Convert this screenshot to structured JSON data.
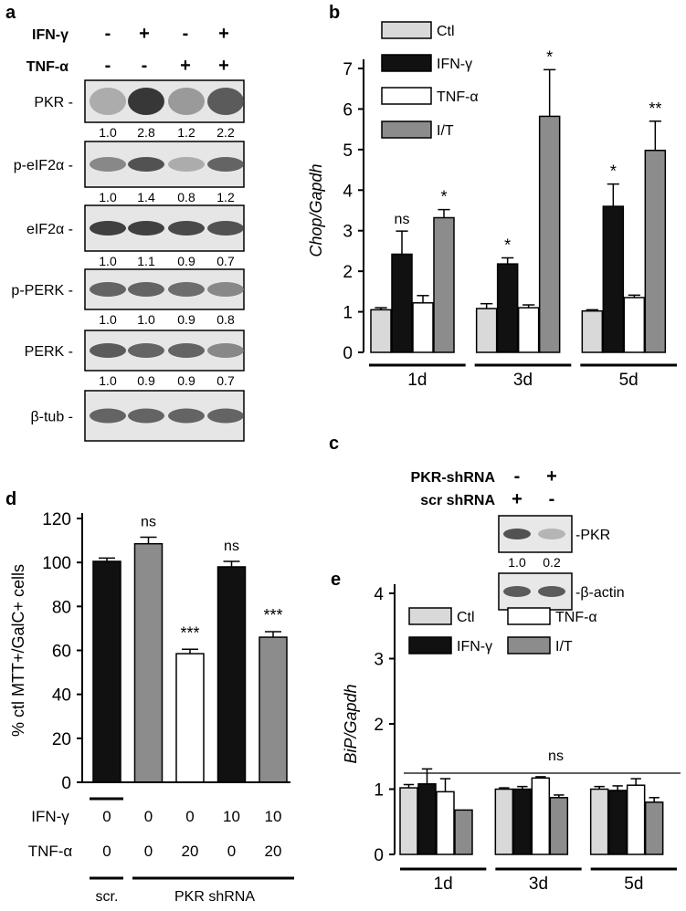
{
  "panel_letters": {
    "a": "a",
    "b": "b",
    "c": "c",
    "d": "d",
    "e": "e"
  },
  "blot_a": {
    "treatment_rows": [
      {
        "label": "IFN-γ",
        "signs": [
          "-",
          "+",
          "-",
          "+"
        ]
      },
      {
        "label": "TNF-α",
        "signs": [
          "-",
          "-",
          "+",
          "+"
        ]
      }
    ],
    "blots": [
      {
        "label": "PKR",
        "quant": [
          "1.0",
          "2.8",
          "1.2",
          "2.2"
        ],
        "intensity": [
          0.35,
          1.0,
          0.45,
          0.8
        ]
      },
      {
        "label": "p-eIF2α",
        "quant": [
          "1.0",
          "1.4",
          "0.8",
          "1.2"
        ],
        "intensity": [
          0.55,
          0.85,
          0.35,
          0.75
        ]
      },
      {
        "label": "eIF2α",
        "quant": [
          "1.0",
          "1.1",
          "0.9",
          "0.7"
        ],
        "intensity": [
          0.95,
          0.95,
          0.9,
          0.85
        ]
      },
      {
        "label": "p-PERK",
        "quant": [
          "1.0",
          "1.0",
          "0.9",
          "0.8"
        ],
        "intensity": [
          0.75,
          0.75,
          0.7,
          0.55
        ]
      },
      {
        "label": "PERK",
        "quant": [
          "1.0",
          "0.9",
          "0.9",
          "0.7"
        ],
        "intensity": [
          0.8,
          0.75,
          0.75,
          0.55
        ]
      },
      {
        "label": "β-tub",
        "quant": [],
        "intensity": [
          0.75,
          0.75,
          0.75,
          0.75
        ]
      }
    ]
  },
  "blot_c": {
    "treatment_rows": [
      {
        "label": "PKR-shRNA",
        "signs": [
          "-",
          "+"
        ]
      },
      {
        "label": "scr shRNA",
        "signs": [
          "+",
          "-"
        ]
      }
    ],
    "blots": [
      {
        "label": "-PKR",
        "quant": [
          "1.0",
          "0.2"
        ],
        "intensity": [
          0.85,
          0.3
        ]
      },
      {
        "label": "-β-actin",
        "quant": [],
        "intensity": [
          0.8,
          0.8
        ]
      }
    ]
  },
  "chart_data": [
    {
      "id": "b",
      "type": "bar",
      "ylabel": "Chop/Gapdh",
      "ylim": [
        0,
        7
      ],
      "yticks": [
        0,
        1,
        2,
        3,
        4,
        5,
        6,
        7
      ],
      "groups": [
        "1d",
        "3d",
        "5d"
      ],
      "series": [
        {
          "name": "Ctl",
          "color": "#d9d9d9",
          "values": [
            1.05,
            1.08,
            1.02
          ],
          "errors": [
            0.05,
            0.12,
            0.03
          ]
        },
        {
          "name": "IFN-γ",
          "color": "#111111",
          "values": [
            2.42,
            2.18,
            3.6
          ],
          "errors": [
            0.57,
            0.15,
            0.55
          ]
        },
        {
          "name": "TNF-α",
          "color": "#ffffff",
          "values": [
            1.22,
            1.1,
            1.35
          ],
          "errors": [
            0.18,
            0.07,
            0.06
          ]
        },
        {
          "name": "I/T",
          "color": "#8c8c8c",
          "values": [
            3.32,
            5.82,
            4.98
          ],
          "errors": [
            0.2,
            1.15,
            0.72
          ]
        }
      ],
      "annotations": [
        {
          "group": 0,
          "series": 1,
          "text": "ns"
        },
        {
          "group": 0,
          "series": 3,
          "text": "*"
        },
        {
          "group": 1,
          "series": 1,
          "text": "*"
        },
        {
          "group": 1,
          "series": 3,
          "text": "*"
        },
        {
          "group": 2,
          "series": 1,
          "text": "*"
        },
        {
          "group": 2,
          "series": 3,
          "text": "**"
        }
      ],
      "legend": "top-left"
    },
    {
      "id": "d",
      "type": "bar",
      "ylabel": "% ctl MTT+/GalC+ cells",
      "ylim": [
        0,
        120
      ],
      "yticks": [
        0,
        20,
        40,
        60,
        80,
        100,
        120
      ],
      "bars": [
        {
          "value": 100.5,
          "error": 1.5,
          "color": "#111111",
          "ifn": "0",
          "tnf": "0",
          "annotation": ""
        },
        {
          "value": 108.5,
          "error": 3.0,
          "color": "#8c8c8c",
          "ifn": "0",
          "tnf": "0",
          "annotation": "ns"
        },
        {
          "value": 58.5,
          "error": 2.0,
          "color": "#ffffff",
          "ifn": "0",
          "tnf": "20",
          "annotation": "***"
        },
        {
          "value": 98.0,
          "error": 2.5,
          "color": "#111111",
          "ifn": "10",
          "tnf": "0",
          "annotation": "ns"
        },
        {
          "value": 66.0,
          "error": 2.5,
          "color": "#8c8c8c",
          "ifn": "10",
          "tnf": "20",
          "annotation": "***"
        }
      ],
      "row_labels": [
        "IFN-γ",
        "TNF-α"
      ],
      "group_labels": [
        "scr.",
        "PKR shRNA"
      ]
    },
    {
      "id": "e",
      "type": "bar",
      "ylabel": "BiP/Gapdh",
      "ylim": [
        0,
        4
      ],
      "yticks": [
        0,
        1,
        2,
        3,
        4
      ],
      "groups": [
        "1d",
        "3d",
        "5d"
      ],
      "series": [
        {
          "name": "Ctl",
          "color": "#d9d9d9",
          "values": [
            1.02,
            1.0,
            1.0
          ],
          "errors": [
            0.05,
            0.02,
            0.04
          ]
        },
        {
          "name": "IFN-γ",
          "color": "#111111",
          "values": [
            1.08,
            1.0,
            0.98
          ],
          "errors": [
            0.23,
            0.04,
            0.07
          ]
        },
        {
          "name": "TNF-α",
          "color": "#ffffff",
          "values": [
            0.96,
            1.17,
            1.06
          ],
          "errors": [
            0.2,
            0.02,
            0.1
          ]
        },
        {
          "name": "I/T",
          "color": "#8c8c8c",
          "values": [
            0.68,
            0.87,
            0.8
          ],
          "errors": [
            0.0,
            0.04,
            0.07
          ]
        }
      ],
      "annotation": "ns",
      "legend": "top"
    }
  ]
}
